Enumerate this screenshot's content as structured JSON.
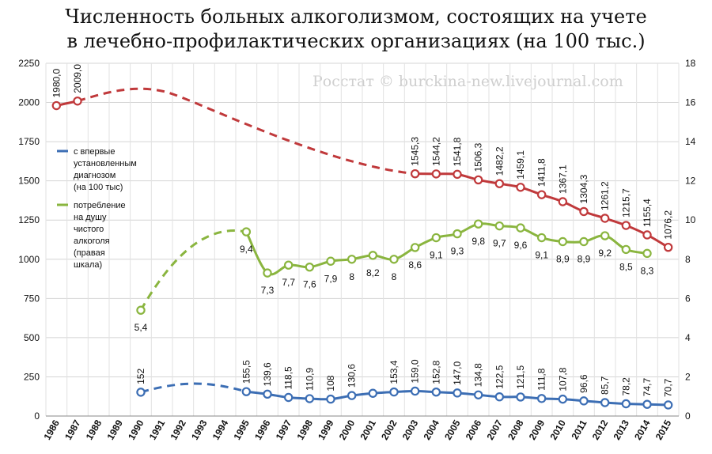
{
  "chart_data": {
    "type": "line",
    "title_line1": "Численность больных алкоголизмом, состоящих на учете",
    "title_line2": "в лечебно-профилактических организациях (на 100 тыс.)",
    "watermark": "Росстат © burckina-new.livejournal.com",
    "x": [
      "1986",
      "1987",
      "1988",
      "1989",
      "1990",
      "1991",
      "1992",
      "1993",
      "1994",
      "1995",
      "1996",
      "1997",
      "1998",
      "1999",
      "2000",
      "2001",
      "2002",
      "2003",
      "2004",
      "2005",
      "2006",
      "2007",
      "2008",
      "2009",
      "2010",
      "2011",
      "2012",
      "2013",
      "2014",
      "2015"
    ],
    "left_axis": {
      "ylim": [
        0,
        2250
      ],
      "ticks": [
        "0",
        "250",
        "500",
        "750",
        "1000",
        "1250",
        "1500",
        "1750",
        "2000",
        "2250"
      ]
    },
    "right_axis": {
      "ylim": [
        0,
        18
      ],
      "ticks": [
        "0",
        "2",
        "4",
        "6",
        "8",
        "10",
        "12",
        "14",
        "16",
        "18"
      ]
    },
    "grid": true,
    "legend_placement": "left",
    "series": [
      {
        "key": "registered",
        "axis": "left",
        "color": "#c0393b",
        "x": [
          "1986",
          "1987",
          "2003",
          "2004",
          "2005",
          "2006",
          "2007",
          "2008",
          "2009",
          "2010",
          "2011",
          "2012",
          "2013",
          "2014",
          "2015"
        ],
        "values": [
          1980.0,
          2009.0,
          1545.3,
          1544.2,
          1541.8,
          1506.3,
          1482.2,
          1459.1,
          1411.8,
          1367.1,
          1304.3,
          1261.2,
          1215.7,
          1155.4,
          1076.2
        ],
        "labels": [
          "1980,0",
          "2009,0",
          "1545,3",
          "1544,2",
          "1541,8",
          "1506,3",
          "1482,2",
          "1459,1",
          "1411,8",
          "1367,1",
          "1304,3",
          "1261,2",
          "1215,7",
          "1155,4",
          "1076,2"
        ],
        "gap_interpolated": true
      },
      {
        "key": "new",
        "name": "с впервые установленным диагнозом (на 100 тыс)",
        "axis": "left",
        "color": "#3c6eb4",
        "x": [
          "1990",
          "1995",
          "1996",
          "1997",
          "1998",
          "1999",
          "2000",
          "2001",
          "2002",
          "2003",
          "2004",
          "2005",
          "2006",
          "2007",
          "2008",
          "2009",
          "2010",
          "2011",
          "2012",
          "2013",
          "2014",
          "2015"
        ],
        "values": [
          152,
          155.5,
          139.6,
          118.5,
          110.9,
          108,
          130.6,
          145,
          153.4,
          159.0,
          152.8,
          147.0,
          134.8,
          122.5,
          121.5,
          111.8,
          107.8,
          96.6,
          85.7,
          78.2,
          74.7,
          70.7
        ],
        "labels": [
          "152",
          "155,5",
          "139,6",
          "118,5",
          "110,9",
          "108",
          "130,6",
          "",
          "153,4",
          "159,0",
          "152,8",
          "147,0",
          "134,8",
          "122,5",
          "121,5",
          "111,8",
          "107,8",
          "96,6",
          "85,7",
          "78,2",
          "74,7",
          "70,7"
        ],
        "gap_interpolated": true
      },
      {
        "key": "alcohol",
        "name": "потребление на душу чистого алкоголя (правая шкала)",
        "axis": "right",
        "color": "#8ab53f",
        "x": [
          "1990",
          "1995",
          "1996",
          "1997",
          "1998",
          "1999",
          "2000",
          "2001",
          "2002",
          "2003",
          "2004",
          "2005",
          "2006",
          "2007",
          "2008",
          "2009",
          "2010",
          "2011",
          "2012",
          "2013",
          "2014"
        ],
        "values": [
          5.4,
          9.4,
          7.3,
          7.7,
          7.6,
          7.9,
          8,
          8.2,
          8,
          8.6,
          9.1,
          9.3,
          9.8,
          9.7,
          9.6,
          9.1,
          8.9,
          8.9,
          9.2,
          8.5,
          8.3
        ],
        "labels": [
          "5,4",
          "9,4",
          "7,3",
          "7,7",
          "7,6",
          "7,9",
          "8",
          "8,2",
          "8",
          "8,6",
          "9,1",
          "9,3",
          "9,8",
          "9,7",
          "9,6",
          "9,1",
          "8,9",
          "8,9",
          "9,2",
          "8,5",
          "8,3"
        ],
        "gap_interpolated": true
      }
    ],
    "legend": [
      {
        "key": "new",
        "lines": [
          "с впервые",
          "установленным",
          "диагнозом",
          "(на 100 тыс)"
        ]
      },
      {
        "key": "alcohol",
        "lines": [
          "потребление",
          "на душу",
          "чистого",
          "алкоголя",
          "(правая",
          "шкала)"
        ]
      }
    ]
  }
}
